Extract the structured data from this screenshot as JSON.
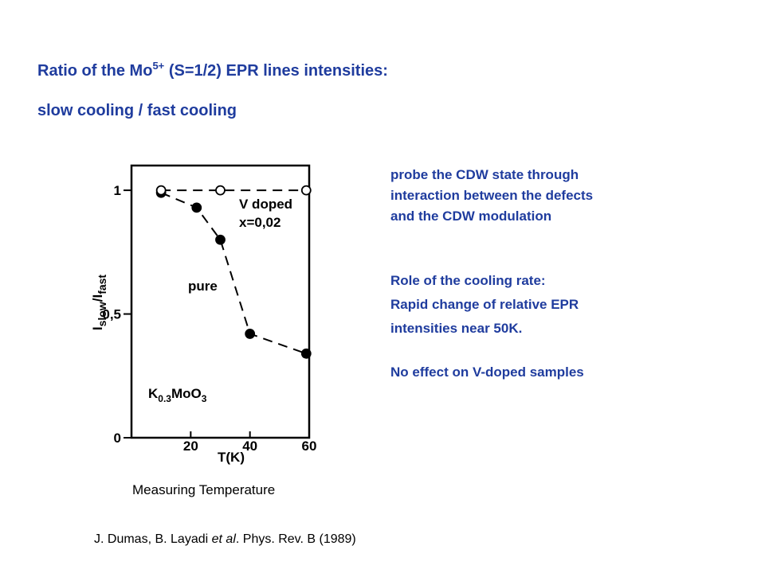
{
  "title": {
    "before": "Ratio of the Mo",
    "sup": "5+",
    "after": " (S=1/2) EPR lines intensities:"
  },
  "subtitle": "slow cooling / fast cooling",
  "notes": [
    [
      "probe the CDW state through",
      "interaction between the defects",
      "and the CDW modulation"
    ],
    [
      "Role of the cooling rate:",
      "Rapid change of relative EPR",
      "intensities near 50K."
    ],
    [
      "No effect on V-doped samples"
    ]
  ],
  "caption": "Measuring Temperature",
  "citation": {
    "before": "J. Dumas, B. Layadi ",
    "italic": "et al",
    "after": ". Phys. Rev. B (1989)"
  },
  "chart_data": {
    "type": "scatter",
    "x_label": "T(K)",
    "y_label": [
      "I",
      "slow",
      "/I",
      "fast"
    ],
    "annotations": {
      "v_doped": "V doped",
      "x_value": "x=0,02",
      "pure": "pure",
      "compound": [
        "K",
        "0.3",
        "MoO",
        "3"
      ]
    },
    "xlim": [
      0,
      60
    ],
    "xticks": [
      20,
      40,
      60
    ],
    "ylim": [
      0,
      1.1
    ],
    "yticks": [
      0,
      {
        "value": 0.5,
        "label": "0,5"
      },
      1
    ],
    "series": [
      {
        "name": "pure",
        "color": "#000000",
        "filled": true,
        "x": [
          10,
          22,
          30,
          40,
          59
        ],
        "values": [
          0.99,
          0.93,
          0.8,
          0.42,
          0.34
        ]
      },
      {
        "name": "V doped",
        "color": "#000000",
        "filled": false,
        "x": [
          10,
          30,
          59
        ],
        "values": [
          1.0,
          1.0,
          1.0
        ]
      }
    ]
  }
}
